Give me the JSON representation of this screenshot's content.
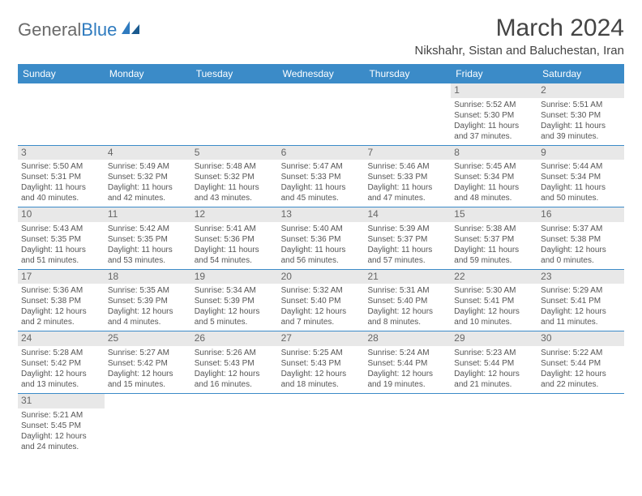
{
  "logo": {
    "text1": "General",
    "text2": "Blue"
  },
  "title": "March 2024",
  "location": "Nikshahr, Sistan and Baluchestan, Iran",
  "colors": {
    "header_bg": "#3b8bc8",
    "header_text": "#ffffff",
    "daynum_bg": "#e8e8e8",
    "row_border": "#3b8bc8",
    "body_text": "#555555",
    "title_text": "#444444",
    "logo_gray": "#6a6a6a",
    "logo_blue": "#2f7bbf",
    "background": "#ffffff"
  },
  "fonts": {
    "title_size": 30,
    "location_size": 15,
    "weekday_size": 12,
    "daynum_size": 12,
    "detail_size": 10
  },
  "weekdays": [
    "Sunday",
    "Monday",
    "Tuesday",
    "Wednesday",
    "Thursday",
    "Friday",
    "Saturday"
  ],
  "weeks": [
    [
      null,
      null,
      null,
      null,
      null,
      {
        "n": "1",
        "sr": "Sunrise: 5:52 AM",
        "ss": "Sunset: 5:30 PM",
        "d1": "Daylight: 11 hours",
        "d2": "and 37 minutes."
      },
      {
        "n": "2",
        "sr": "Sunrise: 5:51 AM",
        "ss": "Sunset: 5:30 PM",
        "d1": "Daylight: 11 hours",
        "d2": "and 39 minutes."
      }
    ],
    [
      {
        "n": "3",
        "sr": "Sunrise: 5:50 AM",
        "ss": "Sunset: 5:31 PM",
        "d1": "Daylight: 11 hours",
        "d2": "and 40 minutes."
      },
      {
        "n": "4",
        "sr": "Sunrise: 5:49 AM",
        "ss": "Sunset: 5:32 PM",
        "d1": "Daylight: 11 hours",
        "d2": "and 42 minutes."
      },
      {
        "n": "5",
        "sr": "Sunrise: 5:48 AM",
        "ss": "Sunset: 5:32 PM",
        "d1": "Daylight: 11 hours",
        "d2": "and 43 minutes."
      },
      {
        "n": "6",
        "sr": "Sunrise: 5:47 AM",
        "ss": "Sunset: 5:33 PM",
        "d1": "Daylight: 11 hours",
        "d2": "and 45 minutes."
      },
      {
        "n": "7",
        "sr": "Sunrise: 5:46 AM",
        "ss": "Sunset: 5:33 PM",
        "d1": "Daylight: 11 hours",
        "d2": "and 47 minutes."
      },
      {
        "n": "8",
        "sr": "Sunrise: 5:45 AM",
        "ss": "Sunset: 5:34 PM",
        "d1": "Daylight: 11 hours",
        "d2": "and 48 minutes."
      },
      {
        "n": "9",
        "sr": "Sunrise: 5:44 AM",
        "ss": "Sunset: 5:34 PM",
        "d1": "Daylight: 11 hours",
        "d2": "and 50 minutes."
      }
    ],
    [
      {
        "n": "10",
        "sr": "Sunrise: 5:43 AM",
        "ss": "Sunset: 5:35 PM",
        "d1": "Daylight: 11 hours",
        "d2": "and 51 minutes."
      },
      {
        "n": "11",
        "sr": "Sunrise: 5:42 AM",
        "ss": "Sunset: 5:35 PM",
        "d1": "Daylight: 11 hours",
        "d2": "and 53 minutes."
      },
      {
        "n": "12",
        "sr": "Sunrise: 5:41 AM",
        "ss": "Sunset: 5:36 PM",
        "d1": "Daylight: 11 hours",
        "d2": "and 54 minutes."
      },
      {
        "n": "13",
        "sr": "Sunrise: 5:40 AM",
        "ss": "Sunset: 5:36 PM",
        "d1": "Daylight: 11 hours",
        "d2": "and 56 minutes."
      },
      {
        "n": "14",
        "sr": "Sunrise: 5:39 AM",
        "ss": "Sunset: 5:37 PM",
        "d1": "Daylight: 11 hours",
        "d2": "and 57 minutes."
      },
      {
        "n": "15",
        "sr": "Sunrise: 5:38 AM",
        "ss": "Sunset: 5:37 PM",
        "d1": "Daylight: 11 hours",
        "d2": "and 59 minutes."
      },
      {
        "n": "16",
        "sr": "Sunrise: 5:37 AM",
        "ss": "Sunset: 5:38 PM",
        "d1": "Daylight: 12 hours",
        "d2": "and 0 minutes."
      }
    ],
    [
      {
        "n": "17",
        "sr": "Sunrise: 5:36 AM",
        "ss": "Sunset: 5:38 PM",
        "d1": "Daylight: 12 hours",
        "d2": "and 2 minutes."
      },
      {
        "n": "18",
        "sr": "Sunrise: 5:35 AM",
        "ss": "Sunset: 5:39 PM",
        "d1": "Daylight: 12 hours",
        "d2": "and 4 minutes."
      },
      {
        "n": "19",
        "sr": "Sunrise: 5:34 AM",
        "ss": "Sunset: 5:39 PM",
        "d1": "Daylight: 12 hours",
        "d2": "and 5 minutes."
      },
      {
        "n": "20",
        "sr": "Sunrise: 5:32 AM",
        "ss": "Sunset: 5:40 PM",
        "d1": "Daylight: 12 hours",
        "d2": "and 7 minutes."
      },
      {
        "n": "21",
        "sr": "Sunrise: 5:31 AM",
        "ss": "Sunset: 5:40 PM",
        "d1": "Daylight: 12 hours",
        "d2": "and 8 minutes."
      },
      {
        "n": "22",
        "sr": "Sunrise: 5:30 AM",
        "ss": "Sunset: 5:41 PM",
        "d1": "Daylight: 12 hours",
        "d2": "and 10 minutes."
      },
      {
        "n": "23",
        "sr": "Sunrise: 5:29 AM",
        "ss": "Sunset: 5:41 PM",
        "d1": "Daylight: 12 hours",
        "d2": "and 11 minutes."
      }
    ],
    [
      {
        "n": "24",
        "sr": "Sunrise: 5:28 AM",
        "ss": "Sunset: 5:42 PM",
        "d1": "Daylight: 12 hours",
        "d2": "and 13 minutes."
      },
      {
        "n": "25",
        "sr": "Sunrise: 5:27 AM",
        "ss": "Sunset: 5:42 PM",
        "d1": "Daylight: 12 hours",
        "d2": "and 15 minutes."
      },
      {
        "n": "26",
        "sr": "Sunrise: 5:26 AM",
        "ss": "Sunset: 5:43 PM",
        "d1": "Daylight: 12 hours",
        "d2": "and 16 minutes."
      },
      {
        "n": "27",
        "sr": "Sunrise: 5:25 AM",
        "ss": "Sunset: 5:43 PM",
        "d1": "Daylight: 12 hours",
        "d2": "and 18 minutes."
      },
      {
        "n": "28",
        "sr": "Sunrise: 5:24 AM",
        "ss": "Sunset: 5:44 PM",
        "d1": "Daylight: 12 hours",
        "d2": "and 19 minutes."
      },
      {
        "n": "29",
        "sr": "Sunrise: 5:23 AM",
        "ss": "Sunset: 5:44 PM",
        "d1": "Daylight: 12 hours",
        "d2": "and 21 minutes."
      },
      {
        "n": "30",
        "sr": "Sunrise: 5:22 AM",
        "ss": "Sunset: 5:44 PM",
        "d1": "Daylight: 12 hours",
        "d2": "and 22 minutes."
      }
    ],
    [
      {
        "n": "31",
        "sr": "Sunrise: 5:21 AM",
        "ss": "Sunset: 5:45 PM",
        "d1": "Daylight: 12 hours",
        "d2": "and 24 minutes."
      },
      null,
      null,
      null,
      null,
      null,
      null
    ]
  ]
}
